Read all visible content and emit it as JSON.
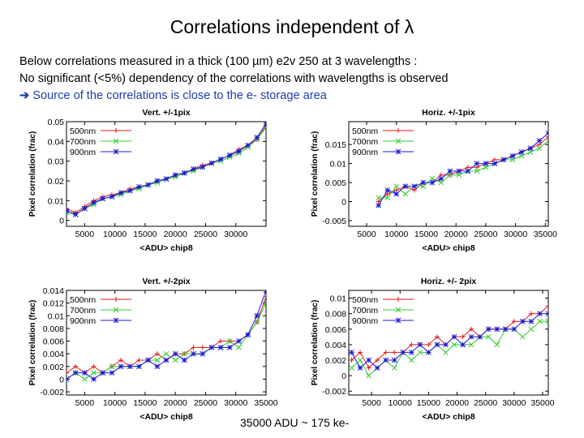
{
  "slide": {
    "title": "Correlations independent of λ",
    "line1": "Below correlations measured in a thick (100 µm) e2v 250 at 3 wavelengths :",
    "line2": "No significant (<5%) dependency of the correlations with  wavelengths is observed",
    "line3_arrow": "➔",
    "line3": " Source of the correlations is close to the e- storage area",
    "footnote": "35000 ADU ~ 175 ke-"
  },
  "colors": {
    "500nm": "#e41a1c",
    "700nm": "#33cc33",
    "900nm": "#1a1ad4",
    "arrow": "#1f3ea8"
  },
  "chart_data": [
    {
      "type": "line",
      "title": "Vert. +/-1pix",
      "xlabel": "<ADU> chip8",
      "ylabel": "Pixel correlation (frac)",
      "xlim": [
        2000,
        35000
      ],
      "ylim": [
        -0.003,
        0.05
      ],
      "xticks": [
        5000,
        10000,
        15000,
        20000,
        25000,
        30000
      ],
      "yticks": [
        0,
        0.01,
        0.02,
        0.03,
        0.04,
        0.05
      ],
      "yticklabels": [
        "0",
        "0.01",
        "0.02",
        "0.03",
        "0.04",
        "0.05"
      ],
      "legend": "top-left",
      "grid": false,
      "x": [
        2000,
        3500,
        5000,
        6500,
        8000,
        9500,
        11000,
        12500,
        14000,
        15500,
        17000,
        18500,
        20000,
        21500,
        23000,
        24500,
        26000,
        27500,
        29000,
        30500,
        32000,
        33500,
        35000
      ],
      "series": [
        {
          "name": "500nm",
          "values": [
            0.006,
            0.004,
            0.007,
            0.01,
            0.012,
            0.013,
            0.014,
            0.016,
            0.017,
            0.018,
            0.02,
            0.021,
            0.023,
            0.024,
            0.026,
            0.028,
            0.029,
            0.031,
            0.033,
            0.036,
            0.038,
            0.041,
            0.048
          ]
        },
        {
          "name": "700nm",
          "values": [
            0.004,
            0.003,
            0.006,
            0.008,
            0.011,
            0.012,
            0.013,
            0.015,
            0.016,
            0.018,
            0.019,
            0.021,
            0.022,
            0.024,
            0.025,
            0.027,
            0.029,
            0.03,
            0.032,
            0.034,
            0.037,
            0.041,
            0.047
          ]
        },
        {
          "name": "900nm",
          "values": [
            0.005,
            0.003,
            0.006,
            0.009,
            0.011,
            0.012,
            0.014,
            0.015,
            0.017,
            0.018,
            0.02,
            0.021,
            0.023,
            0.024,
            0.026,
            0.027,
            0.029,
            0.031,
            0.033,
            0.035,
            0.038,
            0.042,
            0.049
          ]
        }
      ]
    },
    {
      "type": "line",
      "title": "Horiz. +/-1pix",
      "xlabel": "<ADU> chip8",
      "ylabel": "Pixel correlation (frac)",
      "xlim": [
        2000,
        35500
      ],
      "ylim": [
        -0.0065,
        0.021
      ],
      "xticks": [
        5000,
        10000,
        15000,
        20000,
        25000,
        30000,
        35000
      ],
      "yticks": [
        -0.005,
        0,
        0.005,
        0.01,
        0.015
      ],
      "yticklabels": [
        "-0.005",
        "0",
        "0.005",
        "0.01",
        "0.015"
      ],
      "legend": "top-left",
      "grid": false,
      "x": [
        7000,
        8500,
        10000,
        11500,
        13000,
        14500,
        16000,
        17500,
        19000,
        20500,
        22000,
        23500,
        25000,
        26500,
        28000,
        29500,
        31000,
        32500,
        34000,
        35500
      ],
      "series": [
        {
          "name": "500nm",
          "values": [
            0.0,
            0.002,
            0.003,
            0.004,
            0.003,
            0.005,
            0.005,
            0.007,
            0.007,
            0.008,
            0.009,
            0.009,
            0.01,
            0.011,
            0.011,
            0.012,
            0.013,
            0.014,
            0.015,
            0.017
          ]
        },
        {
          "name": "700nm",
          "values": [
            0.001,
            0.001,
            0.004,
            0.002,
            0.004,
            0.004,
            0.006,
            0.005,
            0.007,
            0.007,
            0.008,
            0.008,
            0.009,
            0.01,
            0.011,
            0.011,
            0.012,
            0.013,
            0.014,
            0.016
          ]
        },
        {
          "name": "900nm",
          "values": [
            -0.001,
            0.003,
            0.002,
            0.004,
            0.004,
            0.005,
            0.005,
            0.006,
            0.008,
            0.008,
            0.008,
            0.01,
            0.01,
            0.01,
            0.011,
            0.012,
            0.013,
            0.014,
            0.016,
            0.018
          ]
        }
      ]
    },
    {
      "type": "line",
      "title": "Vert. +/-2pix",
      "xlabel": "<ADU> chip8",
      "ylabel": "Pixel correlation (frac)",
      "xlim": [
        2000,
        35000
      ],
      "ylim": [
        -0.0025,
        0.014
      ],
      "xticks": [
        5000,
        10000,
        15000,
        20000,
        25000,
        30000,
        35000
      ],
      "yticks": [
        -0.002,
        0,
        0.002,
        0.004,
        0.006,
        0.008,
        0.01,
        0.012,
        0.014
      ],
      "yticklabels": [
        "-0.002",
        "0",
        "0.002",
        "0.004",
        "0.006",
        "0.008",
        "0.01",
        "0.012",
        "0.014"
      ],
      "legend": "top-left",
      "grid": false,
      "x": [
        2000,
        3500,
        5000,
        6500,
        8000,
        9500,
        11000,
        12500,
        14000,
        15500,
        17000,
        18500,
        20000,
        21500,
        23000,
        24500,
        26000,
        27500,
        29000,
        30500,
        32000,
        33500,
        35000
      ],
      "series": [
        {
          "name": "500nm",
          "values": [
            0.001,
            0.002,
            0.001,
            0.002,
            0.001,
            0.002,
            0.003,
            0.002,
            0.003,
            0.003,
            0.004,
            0.003,
            0.004,
            0.004,
            0.005,
            0.005,
            0.005,
            0.006,
            0.006,
            0.006,
            0.007,
            0.009,
            0.013
          ]
        },
        {
          "name": "700nm",
          "values": [
            0.0,
            0.001,
            0.0,
            0.001,
            0.001,
            0.002,
            0.002,
            0.002,
            0.002,
            0.003,
            0.003,
            0.004,
            0.003,
            0.004,
            0.004,
            0.004,
            0.005,
            0.005,
            0.006,
            0.005,
            0.007,
            0.009,
            0.012
          ]
        },
        {
          "name": "900nm",
          "values": [
            0.0,
            0.001,
            0.001,
            0.0,
            0.001,
            0.001,
            0.002,
            0.002,
            0.002,
            0.003,
            0.002,
            0.003,
            0.004,
            0.003,
            0.004,
            0.004,
            0.005,
            0.005,
            0.005,
            0.006,
            0.007,
            0.01,
            0.014
          ]
        }
      ]
    },
    {
      "type": "line",
      "title": "Horiz. +/- 2pix",
      "xlabel": "<ADU> chip8",
      "ylabel": "Pixel correlation (frac)",
      "xlim": [
        1000,
        36000
      ],
      "ylim": [
        -0.0025,
        0.011
      ],
      "xticks": [
        5000,
        10000,
        15000,
        20000,
        25000,
        30000,
        35000
      ],
      "yticks": [
        -0.002,
        0,
        0.002,
        0.004,
        0.006,
        0.008,
        0.01
      ],
      "yticklabels": [
        "-0.002",
        "0",
        "0.002",
        "0.004",
        "0.006",
        "0.008",
        "0.01"
      ],
      "legend": "top-left",
      "grid": false,
      "x": [
        1500,
        3000,
        4500,
        6000,
        7500,
        9000,
        10500,
        12000,
        13500,
        15000,
        16500,
        18000,
        19500,
        21000,
        22500,
        24000,
        25500,
        27000,
        28500,
        30000,
        31500,
        33000,
        34500,
        36000
      ],
      "series": [
        {
          "name": "500nm",
          "values": [
            0.002,
            0.003,
            0.001,
            0.002,
            0.003,
            0.003,
            0.003,
            0.004,
            0.004,
            0.004,
            0.005,
            0.004,
            0.005,
            0.005,
            0.006,
            0.005,
            0.006,
            0.006,
            0.006,
            0.007,
            0.007,
            0.008,
            0.008,
            0.009
          ]
        },
        {
          "name": "700nm",
          "values": [
            0.001,
            0.002,
            0.0,
            0.001,
            0.002,
            0.001,
            0.003,
            0.002,
            0.003,
            0.003,
            0.004,
            0.003,
            0.004,
            0.004,
            0.004,
            0.005,
            0.005,
            0.004,
            0.006,
            0.006,
            0.005,
            0.006,
            0.007,
            0.007
          ]
        },
        {
          "name": "900nm",
          "values": [
            0.003,
            0.001,
            0.002,
            0.001,
            0.002,
            0.002,
            0.003,
            0.003,
            0.004,
            0.003,
            0.004,
            0.004,
            0.005,
            0.004,
            0.005,
            0.005,
            0.006,
            0.006,
            0.006,
            0.006,
            0.007,
            0.007,
            0.008,
            0.008
          ]
        }
      ]
    }
  ]
}
